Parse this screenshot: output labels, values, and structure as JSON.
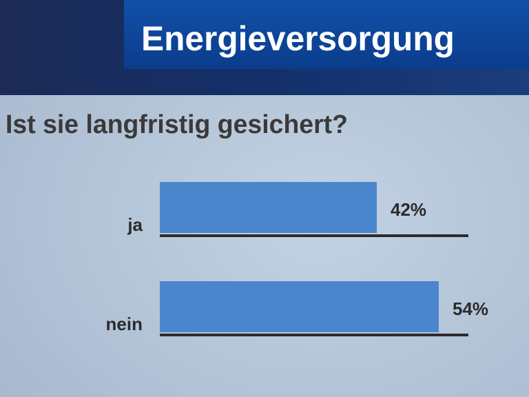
{
  "chart_data": {
    "type": "bar",
    "orientation": "horizontal",
    "title": "Energieversorgung",
    "subtitle": "Ist sie langfristig gesichert?",
    "categories": [
      "ja",
      "nein"
    ],
    "values": [
      42,
      54
    ],
    "value_labels": [
      "42%",
      "54%"
    ],
    "color": "#4a86cc",
    "xlim": [
      0,
      60
    ]
  }
}
